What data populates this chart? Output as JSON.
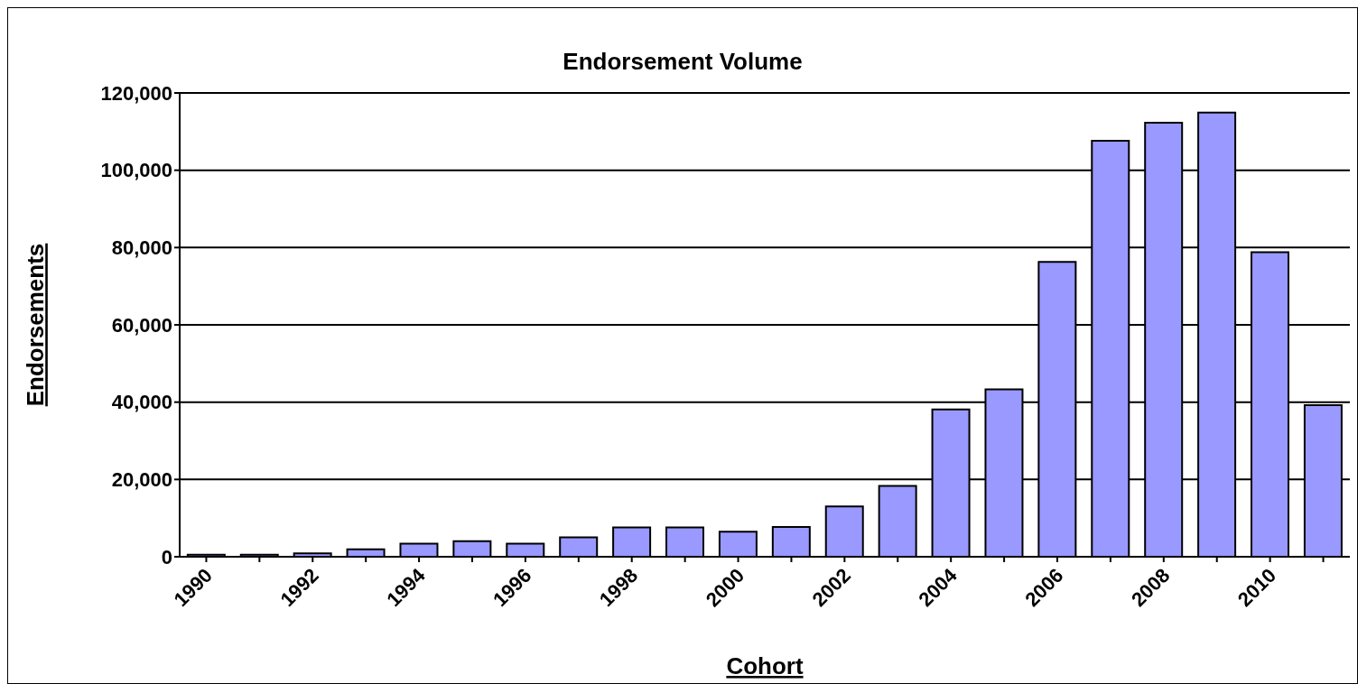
{
  "chart_data": {
    "type": "bar",
    "title": "Endorsement Volume",
    "xlabel": "Cohort",
    "ylabel": "Endorsements",
    "categories": [
      "1990",
      null,
      "1992",
      null,
      "1994",
      null,
      "1996",
      null,
      "1998",
      null,
      "2000",
      null,
      "2002",
      null,
      "2004",
      null,
      "2006",
      null,
      "2008",
      null,
      "2010",
      null
    ],
    "values": [
      500,
      500,
      900,
      1900,
      3400,
      4000,
      3400,
      5000,
      7600,
      7600,
      6500,
      7700,
      13000,
      18300,
      38100,
      43300,
      76300,
      107600,
      112300,
      114900,
      78800,
      39200
    ],
    "color": "#9999ff",
    "ylim": [
      0,
      120000
    ],
    "yticks": [
      0,
      {
        "value": 20000,
        "label": "20,000"
      },
      {
        "value": 40000,
        "label": "40,000"
      },
      {
        "value": 60000,
        "label": "60,000"
      },
      {
        "value": 80000,
        "label": "80,000"
      },
      {
        "value": 100000,
        "label": "100,000"
      },
      {
        "value": 120000,
        "label": "120,000"
      }
    ],
    "grid": "y"
  }
}
